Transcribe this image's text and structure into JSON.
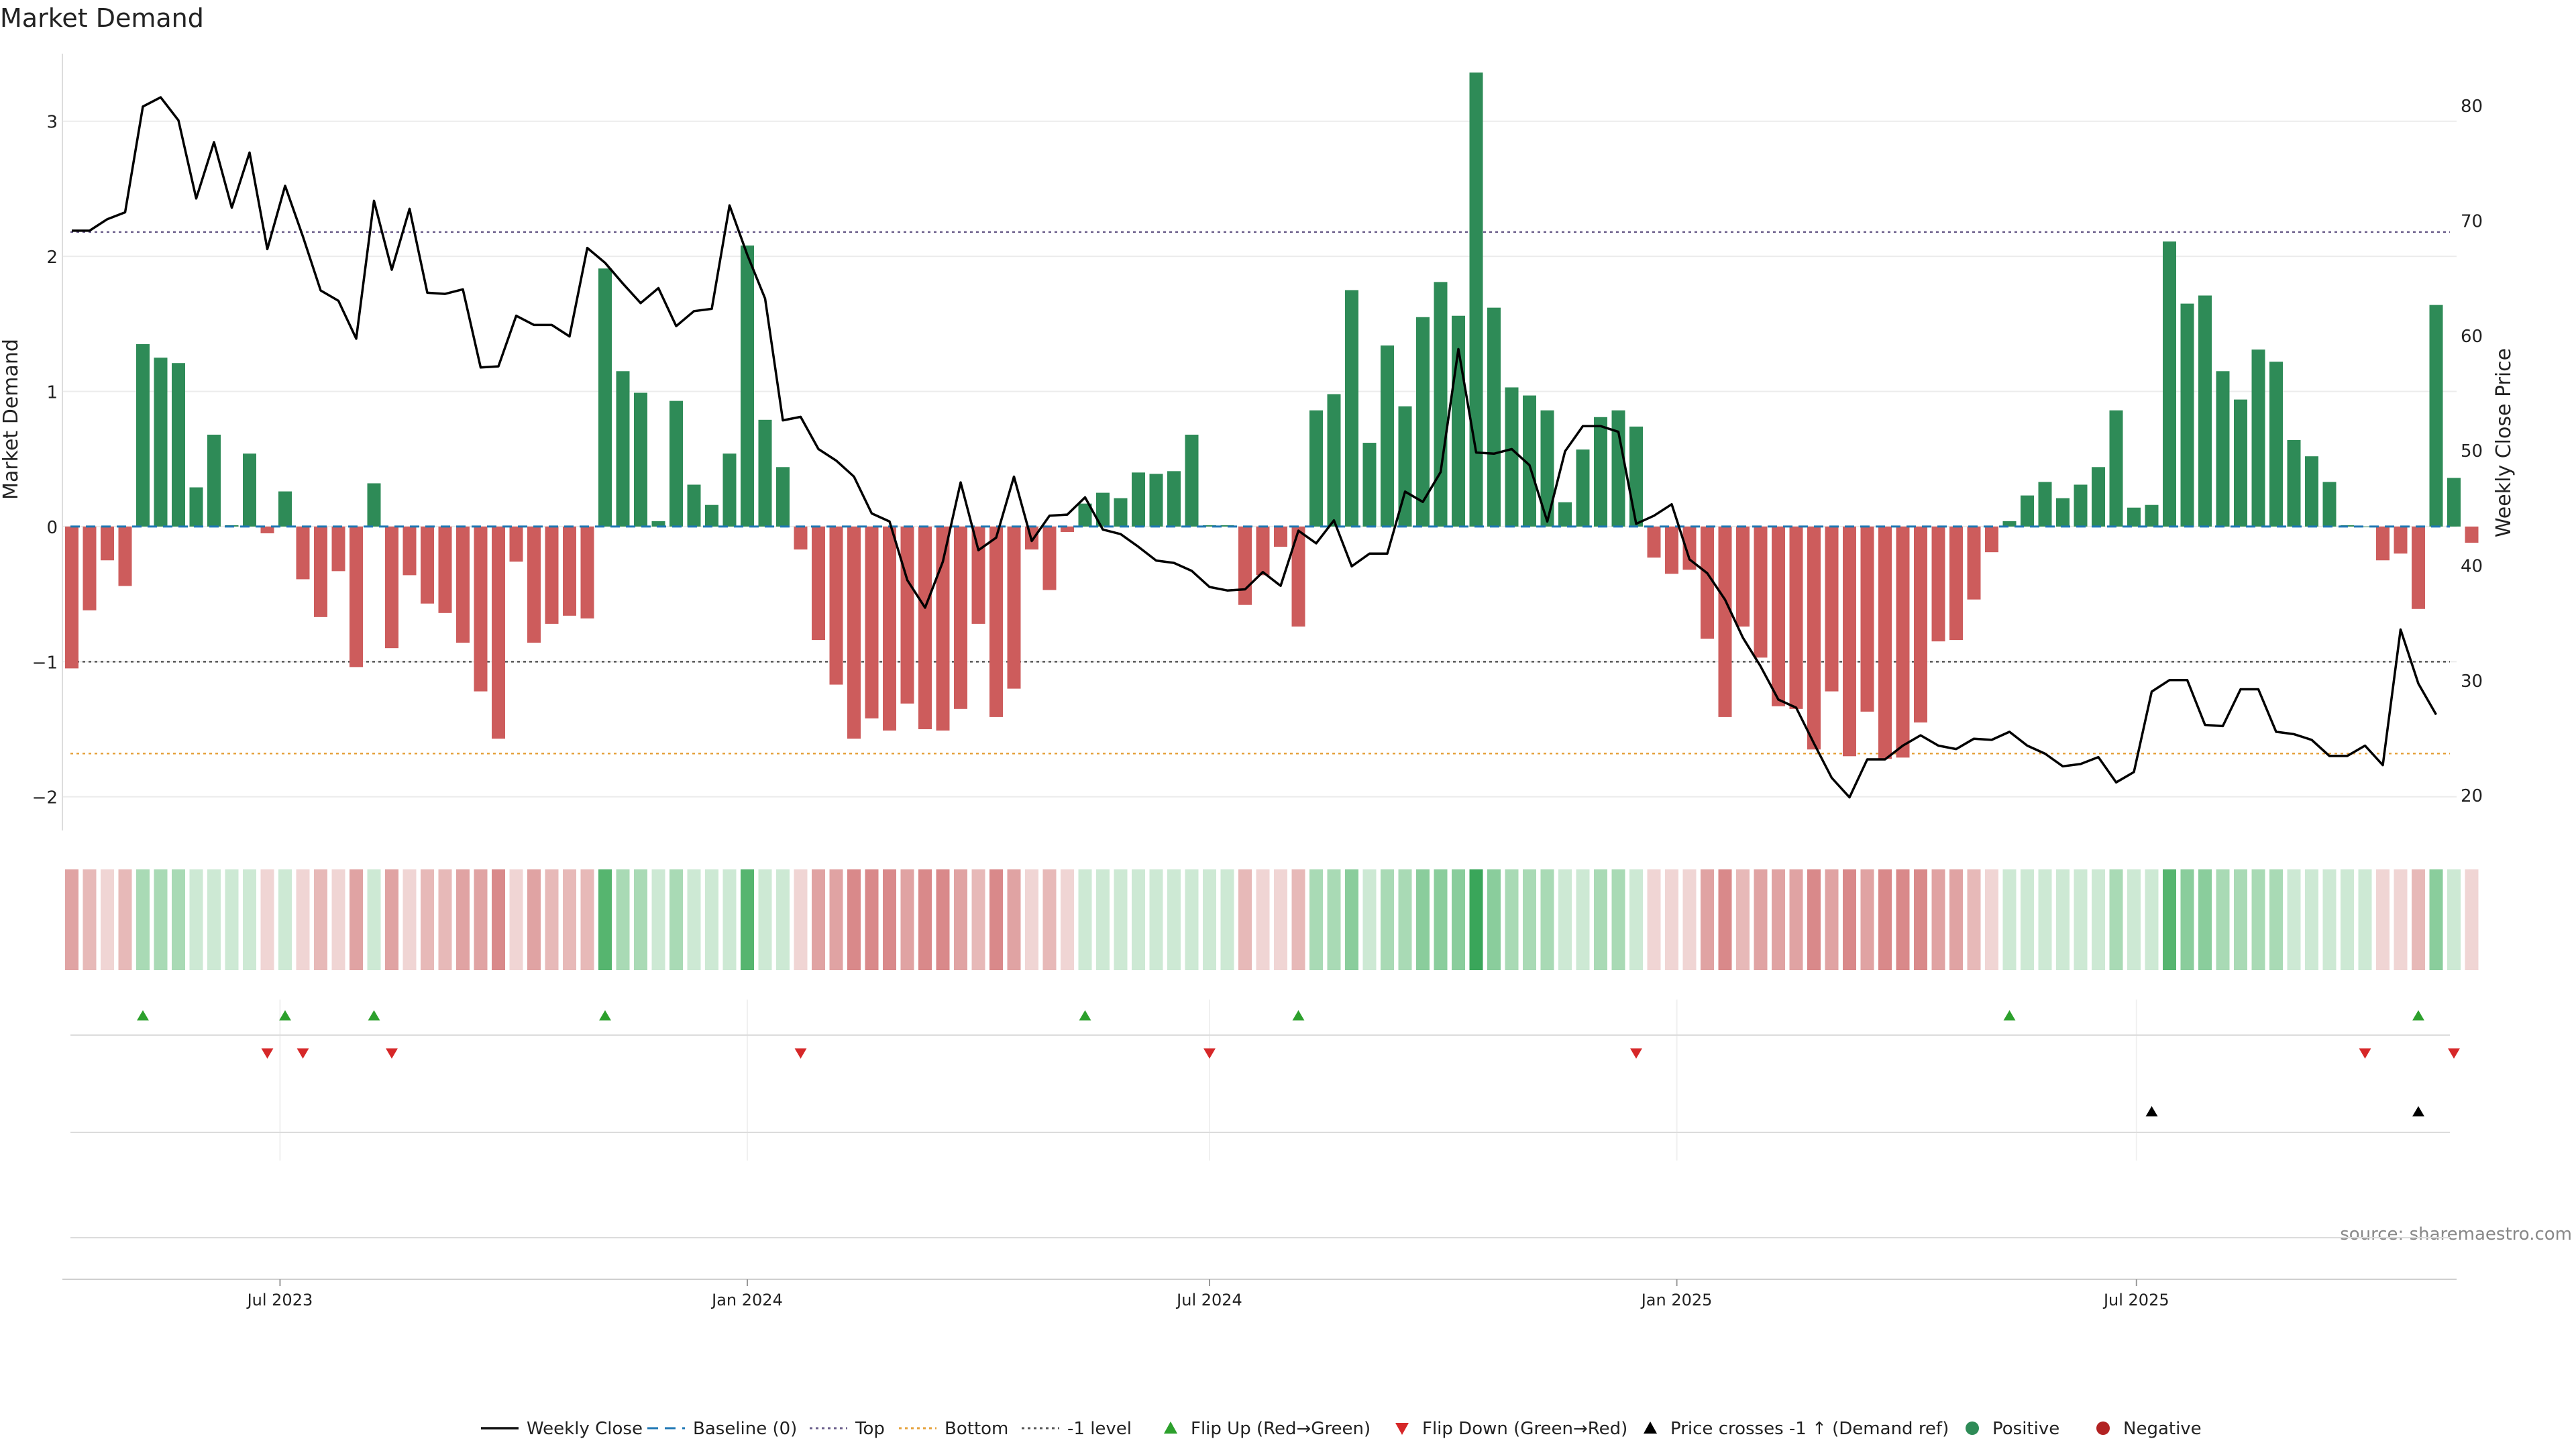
{
  "chart_data": {
    "type": "bar",
    "title": "Market Demand",
    "ylabel_left": "Market Demand",
    "ylabel_right": "Weekly Close Price",
    "source": "source: sharemaestro.com",
    "x_start": "2023-04-10",
    "x_tick_labels": [
      {
        "date": "2023-07-01",
        "label": "Jul 2023"
      },
      {
        "date": "2024-01-01",
        "label": "Jan 2024"
      },
      {
        "date": "2024-07-01",
        "label": "Jul 2024"
      },
      {
        "date": "2025-01-01",
        "label": "Jan 2025"
      },
      {
        "date": "2025-07-01",
        "label": "Jul 2025"
      }
    ],
    "y_left": {
      "range": [
        -2.2,
        3.5
      ],
      "ticks": [
        -2,
        -1,
        0,
        1,
        2,
        3
      ]
    },
    "y_right": {
      "range": [
        17.5,
        84.5
      ],
      "ticks": [
        20,
        30,
        40,
        50,
        60,
        70,
        80
      ]
    },
    "reference_lines": {
      "baseline": 0,
      "top": 2.18,
      "bottom": -1.68,
      "minus_one_level": -1
    },
    "colors": {
      "positive": "#2e8b57",
      "negative": "#cd5c5c",
      "price": "#000000",
      "baseline": "#1f77b4",
      "top": "#6a5d8a",
      "bottom": "#e6a23c",
      "minus_one": "#555555",
      "flip_up": "#2ca02c",
      "flip_down": "#d62728"
    },
    "series": [
      {
        "name": "Market Demand",
        "values": [
          -1.05,
          -0.62,
          -0.25,
          -0.44,
          1.35,
          1.25,
          1.21,
          0.29,
          0.68,
          0.01,
          0.54,
          -0.05,
          0.26,
          -0.39,
          -0.67,
          -0.33,
          -1.04,
          0.32,
          -0.9,
          -0.36,
          -0.57,
          -0.64,
          -0.86,
          -1.22,
          -1.57,
          -0.26,
          -0.86,
          -0.72,
          -0.66,
          -0.68,
          1.91,
          1.15,
          0.99,
          0.04,
          0.93,
          0.31,
          0.16,
          0.54,
          2.08,
          0.79,
          0.44,
          -0.17,
          -0.84,
          -1.17,
          -1.57,
          -1.42,
          -1.51,
          -1.31,
          -1.5,
          -1.51,
          -1.35,
          -0.72,
          -1.41,
          -1.2,
          -0.17,
          -0.47,
          -0.04,
          0.17,
          0.25,
          0.21,
          0.4,
          0.39,
          0.41,
          0.68,
          0.01,
          0.01,
          -0.58,
          -0.36,
          -0.15,
          -0.74,
          0.86,
          0.98,
          1.75,
          0.62,
          1.34,
          0.89,
          1.55,
          1.81,
          1.56,
          3.36,
          1.62,
          1.03,
          0.97,
          0.86,
          0.18,
          0.57,
          0.81,
          0.86,
          0.74,
          -0.23,
          -0.35,
          -0.32,
          -0.83,
          -1.41,
          -0.74,
          -0.97,
          -1.33,
          -1.35,
          -1.65,
          -1.22,
          -1.7,
          -1.37,
          -1.72,
          -1.71,
          -1.45,
          -0.85,
          -0.84,
          -0.54,
          -0.19,
          0.04,
          0.23,
          0.33,
          0.21,
          0.31,
          0.44,
          0.86,
          0.14,
          0.16,
          2.11,
          1.65,
          1.71,
          1.15,
          0.94,
          1.31,
          1.22,
          0.64,
          0.52,
          0.33,
          0.01,
          0.0,
          -0.25,
          -0.2,
          -0.61,
          1.64,
          0.36,
          -0.12
        ]
      },
      {
        "name": "Weekly Close",
        "values": [
          69.1,
          69.1,
          70.1,
          70.7,
          79.9,
          80.7,
          78.7,
          71.9,
          76.8,
          71.1,
          75.9,
          67.5,
          73.0,
          68.6,
          63.9,
          63.0,
          59.7,
          71.7,
          65.7,
          71.0,
          63.7,
          63.6,
          64.0,
          57.2,
          57.3,
          61.7,
          60.9,
          60.9,
          59.9,
          67.6,
          66.3,
          64.5,
          62.8,
          64.1,
          60.8,
          62.1,
          62.3,
          71.3,
          67.0,
          63.2,
          52.6,
          52.9,
          50.1,
          49.1,
          47.7,
          44.5,
          43.8,
          38.7,
          36.3,
          40.3,
          47.2,
          41.3,
          42.4,
          47.7,
          42.1,
          44.3,
          44.4,
          45.9,
          43.1,
          42.7,
          41.6,
          40.4,
          40.2,
          39.5,
          38.1,
          37.8,
          37.9,
          39.4,
          38.2,
          43.0,
          41.9,
          43.9,
          39.9,
          41.0,
          41.0,
          46.4,
          45.5,
          48.1,
          58.8,
          49.8,
          49.7,
          50.1,
          48.7,
          43.8,
          49.9,
          52.1,
          52.1,
          51.6,
          43.6,
          44.3,
          45.3,
          40.5,
          39.3,
          37.0,
          33.7,
          31.2,
          28.3,
          27.6,
          24.5,
          21.5,
          19.8,
          23.1,
          23.1,
          24.3,
          25.2,
          24.3,
          24.0,
          24.9,
          24.8,
          25.5,
          24.3,
          23.6,
          22.5,
          22.7,
          23.3,
          21.1,
          22.0,
          29.0,
          30.0,
          30.0,
          26.1,
          26.0,
          29.2,
          29.2,
          25.5,
          25.3,
          24.8,
          23.4,
          23.4,
          24.3,
          22.6,
          34.4,
          29.7,
          27.0
        ]
      }
    ],
    "flip_up_indices": [
      4,
      12,
      17,
      30,
      57,
      69,
      109,
      132
    ],
    "flip_down_indices": [
      11,
      13,
      18,
      41,
      64,
      88,
      129,
      134
    ],
    "price_cross_indices": [
      117,
      132
    ],
    "legend": [
      {
        "label": "Weekly Close",
        "kind": "line",
        "color": "#111111"
      },
      {
        "label": "Baseline (0)",
        "kind": "dash",
        "color": "#1f77b4"
      },
      {
        "label": "Top",
        "kind": "dot",
        "color": "#6a5d8a"
      },
      {
        "label": "Bottom",
        "kind": "dot",
        "color": "#e6a23c"
      },
      {
        "label": "-1 level",
        "kind": "dot",
        "color": "#555555"
      },
      {
        "label": "Flip Up (Red→Green)",
        "kind": "tri-up",
        "color": "#2ca02c"
      },
      {
        "label": "Flip Down (Green→Red)",
        "kind": "tri-down",
        "color": "#d62728"
      },
      {
        "label": "Price crosses -1 ↑ (Demand ref)",
        "kind": "tri-up",
        "color": "#000000"
      },
      {
        "label": "Positive",
        "kind": "circle",
        "color": "#2e8b57"
      },
      {
        "label": "Negative",
        "kind": "circle",
        "color": "#b22222"
      }
    ]
  }
}
